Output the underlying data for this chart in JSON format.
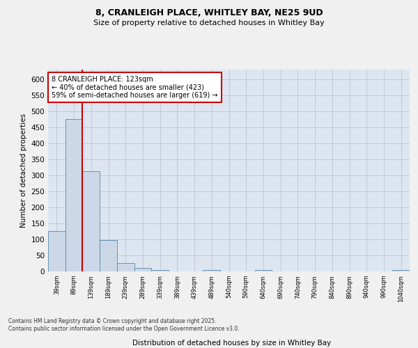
{
  "title_line1": "8, CRANLEIGH PLACE, WHITLEY BAY, NE25 9UD",
  "title_line2": "Size of property relative to detached houses in Whitley Bay",
  "xlabel": "Distribution of detached houses by size in Whitley Bay",
  "ylabel": "Number of detached properties",
  "bar_labels": [
    "39sqm",
    "89sqm",
    "139sqm",
    "189sqm",
    "239sqm",
    "289sqm",
    "339sqm",
    "389sqm",
    "439sqm",
    "489sqm",
    "540sqm",
    "590sqm",
    "640sqm",
    "690sqm",
    "740sqm",
    "790sqm",
    "840sqm",
    "890sqm",
    "940sqm",
    "990sqm",
    "1040sqm"
  ],
  "bar_values": [
    127,
    475,
    313,
    97,
    25,
    10,
    4,
    0,
    0,
    5,
    0,
    0,
    4,
    0,
    0,
    0,
    0,
    0,
    0,
    0,
    4
  ],
  "bar_color": "#ccd8e8",
  "bar_edge_color": "#5588aa",
  "grid_color": "#c0c8d8",
  "background_color": "#dde6f0",
  "vline_x": 1.5,
  "vline_color": "#cc0000",
  "annotation_text": "8 CRANLEIGH PLACE: 123sqm\n← 40% of detached houses are smaller (423)\n59% of semi-detached houses are larger (619) →",
  "annotation_box_color": "#ffffff",
  "annotation_box_edge": "#cc0000",
  "footer_text": "Contains HM Land Registry data © Crown copyright and database right 2025.\nContains public sector information licensed under the Open Government Licence v3.0.",
  "ylim": [
    0,
    630
  ],
  "yticks": [
    0,
    50,
    100,
    150,
    200,
    250,
    300,
    350,
    400,
    450,
    500,
    550,
    600
  ],
  "fig_bg": "#f0f0f0",
  "title1_fontsize": 9,
  "title2_fontsize": 8
}
